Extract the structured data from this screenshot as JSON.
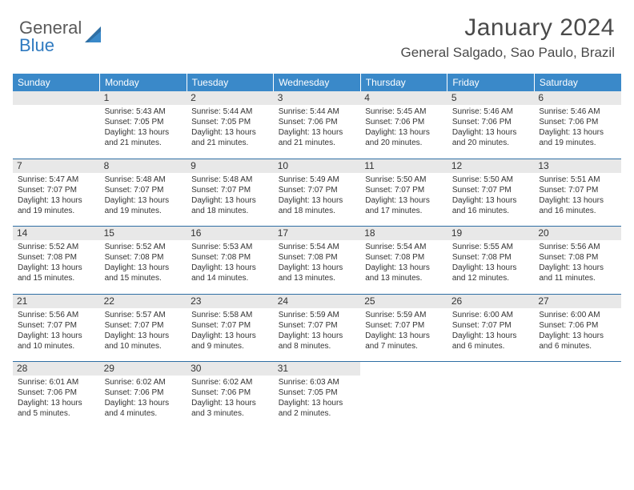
{
  "brand": {
    "word1": "General",
    "word2": "Blue"
  },
  "title": "January 2024",
  "location": "General Salgado, Sao Paulo, Brazil",
  "colors": {
    "header_bg": "#3a89c9",
    "header_text": "#ffffff",
    "sep_line": "#2f6fa4",
    "daynum_bg": "#e8e8e8",
    "text": "#333333",
    "brand_gray": "#5a5a5a",
    "brand_blue": "#2f7ac0"
  },
  "weekdays": [
    "Sunday",
    "Monday",
    "Tuesday",
    "Wednesday",
    "Thursday",
    "Friday",
    "Saturday"
  ],
  "weeks": [
    [
      null,
      {
        "d": "1",
        "sr": "Sunrise: 5:43 AM",
        "ss": "Sunset: 7:05 PM",
        "dl1": "Daylight: 13 hours",
        "dl2": "and 21 minutes."
      },
      {
        "d": "2",
        "sr": "Sunrise: 5:44 AM",
        "ss": "Sunset: 7:05 PM",
        "dl1": "Daylight: 13 hours",
        "dl2": "and 21 minutes."
      },
      {
        "d": "3",
        "sr": "Sunrise: 5:44 AM",
        "ss": "Sunset: 7:06 PM",
        "dl1": "Daylight: 13 hours",
        "dl2": "and 21 minutes."
      },
      {
        "d": "4",
        "sr": "Sunrise: 5:45 AM",
        "ss": "Sunset: 7:06 PM",
        "dl1": "Daylight: 13 hours",
        "dl2": "and 20 minutes."
      },
      {
        "d": "5",
        "sr": "Sunrise: 5:46 AM",
        "ss": "Sunset: 7:06 PM",
        "dl1": "Daylight: 13 hours",
        "dl2": "and 20 minutes."
      },
      {
        "d": "6",
        "sr": "Sunrise: 5:46 AM",
        "ss": "Sunset: 7:06 PM",
        "dl1": "Daylight: 13 hours",
        "dl2": "and 19 minutes."
      }
    ],
    [
      {
        "d": "7",
        "sr": "Sunrise: 5:47 AM",
        "ss": "Sunset: 7:07 PM",
        "dl1": "Daylight: 13 hours",
        "dl2": "and 19 minutes."
      },
      {
        "d": "8",
        "sr": "Sunrise: 5:48 AM",
        "ss": "Sunset: 7:07 PM",
        "dl1": "Daylight: 13 hours",
        "dl2": "and 19 minutes."
      },
      {
        "d": "9",
        "sr": "Sunrise: 5:48 AM",
        "ss": "Sunset: 7:07 PM",
        "dl1": "Daylight: 13 hours",
        "dl2": "and 18 minutes."
      },
      {
        "d": "10",
        "sr": "Sunrise: 5:49 AM",
        "ss": "Sunset: 7:07 PM",
        "dl1": "Daylight: 13 hours",
        "dl2": "and 18 minutes."
      },
      {
        "d": "11",
        "sr": "Sunrise: 5:50 AM",
        "ss": "Sunset: 7:07 PM",
        "dl1": "Daylight: 13 hours",
        "dl2": "and 17 minutes."
      },
      {
        "d": "12",
        "sr": "Sunrise: 5:50 AM",
        "ss": "Sunset: 7:07 PM",
        "dl1": "Daylight: 13 hours",
        "dl2": "and 16 minutes."
      },
      {
        "d": "13",
        "sr": "Sunrise: 5:51 AM",
        "ss": "Sunset: 7:07 PM",
        "dl1": "Daylight: 13 hours",
        "dl2": "and 16 minutes."
      }
    ],
    [
      {
        "d": "14",
        "sr": "Sunrise: 5:52 AM",
        "ss": "Sunset: 7:08 PM",
        "dl1": "Daylight: 13 hours",
        "dl2": "and 15 minutes."
      },
      {
        "d": "15",
        "sr": "Sunrise: 5:52 AM",
        "ss": "Sunset: 7:08 PM",
        "dl1": "Daylight: 13 hours",
        "dl2": "and 15 minutes."
      },
      {
        "d": "16",
        "sr": "Sunrise: 5:53 AM",
        "ss": "Sunset: 7:08 PM",
        "dl1": "Daylight: 13 hours",
        "dl2": "and 14 minutes."
      },
      {
        "d": "17",
        "sr": "Sunrise: 5:54 AM",
        "ss": "Sunset: 7:08 PM",
        "dl1": "Daylight: 13 hours",
        "dl2": "and 13 minutes."
      },
      {
        "d": "18",
        "sr": "Sunrise: 5:54 AM",
        "ss": "Sunset: 7:08 PM",
        "dl1": "Daylight: 13 hours",
        "dl2": "and 13 minutes."
      },
      {
        "d": "19",
        "sr": "Sunrise: 5:55 AM",
        "ss": "Sunset: 7:08 PM",
        "dl1": "Daylight: 13 hours",
        "dl2": "and 12 minutes."
      },
      {
        "d": "20",
        "sr": "Sunrise: 5:56 AM",
        "ss": "Sunset: 7:08 PM",
        "dl1": "Daylight: 13 hours",
        "dl2": "and 11 minutes."
      }
    ],
    [
      {
        "d": "21",
        "sr": "Sunrise: 5:56 AM",
        "ss": "Sunset: 7:07 PM",
        "dl1": "Daylight: 13 hours",
        "dl2": "and 10 minutes."
      },
      {
        "d": "22",
        "sr": "Sunrise: 5:57 AM",
        "ss": "Sunset: 7:07 PM",
        "dl1": "Daylight: 13 hours",
        "dl2": "and 10 minutes."
      },
      {
        "d": "23",
        "sr": "Sunrise: 5:58 AM",
        "ss": "Sunset: 7:07 PM",
        "dl1": "Daylight: 13 hours",
        "dl2": "and 9 minutes."
      },
      {
        "d": "24",
        "sr": "Sunrise: 5:59 AM",
        "ss": "Sunset: 7:07 PM",
        "dl1": "Daylight: 13 hours",
        "dl2": "and 8 minutes."
      },
      {
        "d": "25",
        "sr": "Sunrise: 5:59 AM",
        "ss": "Sunset: 7:07 PM",
        "dl1": "Daylight: 13 hours",
        "dl2": "and 7 minutes."
      },
      {
        "d": "26",
        "sr": "Sunrise: 6:00 AM",
        "ss": "Sunset: 7:07 PM",
        "dl1": "Daylight: 13 hours",
        "dl2": "and 6 minutes."
      },
      {
        "d": "27",
        "sr": "Sunrise: 6:00 AM",
        "ss": "Sunset: 7:06 PM",
        "dl1": "Daylight: 13 hours",
        "dl2": "and 6 minutes."
      }
    ],
    [
      {
        "d": "28",
        "sr": "Sunrise: 6:01 AM",
        "ss": "Sunset: 7:06 PM",
        "dl1": "Daylight: 13 hours",
        "dl2": "and 5 minutes."
      },
      {
        "d": "29",
        "sr": "Sunrise: 6:02 AM",
        "ss": "Sunset: 7:06 PM",
        "dl1": "Daylight: 13 hours",
        "dl2": "and 4 minutes."
      },
      {
        "d": "30",
        "sr": "Sunrise: 6:02 AM",
        "ss": "Sunset: 7:06 PM",
        "dl1": "Daylight: 13 hours",
        "dl2": "and 3 minutes."
      },
      {
        "d": "31",
        "sr": "Sunrise: 6:03 AM",
        "ss": "Sunset: 7:05 PM",
        "dl1": "Daylight: 13 hours",
        "dl2": "and 2 minutes."
      },
      null,
      null,
      null
    ]
  ]
}
